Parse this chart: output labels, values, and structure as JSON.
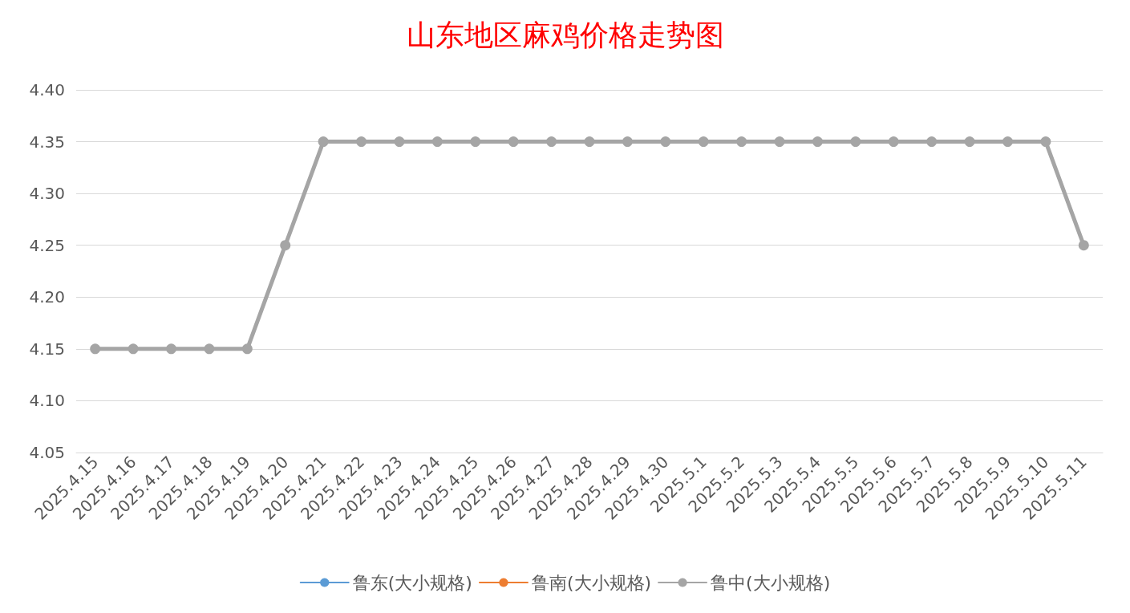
{
  "chart_data": {
    "type": "line",
    "title": "山东地区麻鸡价格走势图",
    "categories": [
      "2025.4.15",
      "2025.4.16",
      "2025.4.17",
      "2025.4.18",
      "2025.4.19",
      "2025.4.20",
      "2025.4.21",
      "2025.4.22",
      "2025.4.23",
      "2025.4.24",
      "2025.4.25",
      "2025.4.26",
      "2025.4.27",
      "2025.4.28",
      "2025.4.29",
      "2025.4.30",
      "2025.5.1",
      "2025.5.2",
      "2025.5.3",
      "2025.5.4",
      "2025.5.5",
      "2025.5.6",
      "2025.5.7",
      "2025.5.8",
      "2025.5.9",
      "2025.5.10",
      "2025.5.11"
    ],
    "series": [
      {
        "name": "鲁东(大小规格)",
        "color": "#5b9bd5",
        "values": [
          null,
          null,
          null,
          null,
          null,
          null,
          null,
          null,
          null,
          null,
          null,
          null,
          null,
          null,
          null,
          null,
          null,
          null,
          null,
          null,
          null,
          null,
          null,
          null,
          null,
          null,
          null
        ]
      },
      {
        "name": "鲁南(大小规格)",
        "color": "#ed7d31",
        "values": [
          null,
          null,
          null,
          null,
          null,
          null,
          null,
          null,
          null,
          null,
          null,
          null,
          null,
          null,
          null,
          null,
          null,
          null,
          null,
          null,
          null,
          null,
          null,
          null,
          null,
          null,
          null
        ]
      },
      {
        "name": "鲁中(大小规格)",
        "color": "#a5a5a5",
        "values": [
          4.15,
          4.15,
          4.15,
          4.15,
          4.15,
          4.25,
          4.35,
          4.35,
          4.35,
          4.35,
          4.35,
          4.35,
          4.35,
          4.35,
          4.35,
          4.35,
          4.35,
          4.35,
          4.35,
          4.35,
          4.35,
          4.35,
          4.35,
          4.35,
          4.35,
          4.35,
          4.25
        ]
      }
    ],
    "ylim": [
      4.05,
      4.4
    ],
    "yticks": [
      {
        "value": 4.05,
        "label": "4.05"
      },
      {
        "value": 4.1,
        "label": "4.10"
      },
      {
        "value": 4.15,
        "label": "4.15"
      },
      {
        "value": 4.2,
        "label": "4.20"
      },
      {
        "value": 4.25,
        "label": "4.25"
      },
      {
        "value": 4.3,
        "label": "4.30"
      },
      {
        "value": 4.35,
        "label": "4.35"
      },
      {
        "value": 4.4,
        "label": "4.40"
      }
    ],
    "grid": "y",
    "legend": "bottom",
    "marker": "circle",
    "line_style": "solid"
  }
}
